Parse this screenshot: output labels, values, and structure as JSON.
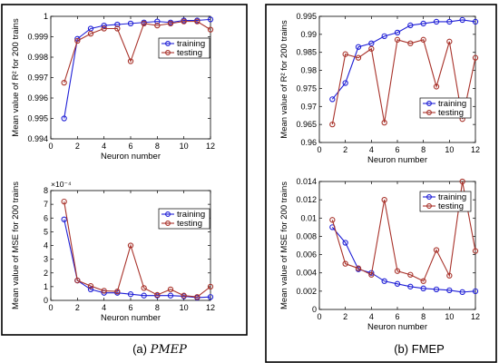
{
  "colors": {
    "training": "#1f1fd6",
    "testing": "#a8322a"
  },
  "captions": {
    "a_prefix": "(a) ",
    "a_method": "PMEP",
    "b_text": "(b) FMEP"
  },
  "chart_data": [
    {
      "id": "a_r2",
      "type": "line",
      "ylabel": "Mean value of R² for 200 trains",
      "xlabel": "Neuron number",
      "xlim": [
        0,
        12
      ],
      "ylim": [
        0.994,
        1.0
      ],
      "xticks": [
        0,
        2,
        4,
        6,
        8,
        10,
        12
      ],
      "yticks": [
        0.994,
        0.995,
        0.996,
        0.997,
        0.998,
        0.999,
        1.0
      ],
      "ytick_labels": [
        "0.994",
        "0.995",
        "0.996",
        "0.997",
        "0.998",
        "0.999",
        "1"
      ],
      "legend": "top-right",
      "x": [
        1,
        2,
        3,
        4,
        5,
        6,
        7,
        8,
        9,
        10,
        11,
        12
      ],
      "series": [
        {
          "name": "training",
          "values": [
            0.995,
            0.9989,
            0.9994,
            0.99955,
            0.9996,
            0.99965,
            0.9997,
            0.99975,
            0.9997,
            0.9998,
            0.9998,
            0.99985
          ]
        },
        {
          "name": "testing",
          "values": [
            0.99675,
            0.9988,
            0.99915,
            0.9994,
            0.9994,
            0.9978,
            0.99965,
            0.99955,
            0.99965,
            0.99975,
            0.99975,
            0.99935
          ]
        }
      ]
    },
    {
      "id": "a_mse",
      "type": "line",
      "ylabel": "Mean value of MSE for 200 trains",
      "xlabel": "Neuron number",
      "multiplier": "×10⁻⁴",
      "xlim": [
        0,
        12
      ],
      "ylim": [
        0,
        8
      ],
      "xticks": [
        0,
        2,
        4,
        6,
        8,
        10,
        12
      ],
      "yticks": [
        0,
        1,
        2,
        3,
        4,
        5,
        6,
        7,
        8
      ],
      "ytick_labels": [
        "0",
        "1",
        "2",
        "3",
        "4",
        "5",
        "6",
        "7",
        "8"
      ],
      "legend": "top-right",
      "x": [
        1,
        2,
        3,
        4,
        5,
        6,
        7,
        8,
        9,
        10,
        11,
        12
      ],
      "series": [
        {
          "name": "training",
          "values": [
            5.9,
            1.45,
            0.8,
            0.55,
            0.55,
            0.45,
            0.35,
            0.35,
            0.35,
            0.3,
            0.2,
            0.25
          ]
        },
        {
          "name": "testing",
          "values": [
            7.2,
            1.45,
            1.05,
            0.7,
            0.65,
            4.0,
            0.9,
            0.4,
            0.8,
            0.35,
            0.25,
            1.0
          ]
        }
      ]
    },
    {
      "id": "b_r2",
      "type": "line",
      "ylabel": "Mean value of R² for 200 trains",
      "xlabel": "Neuron number",
      "xlim": [
        0,
        12
      ],
      "ylim": [
        0.96,
        0.995
      ],
      "xticks": [
        0,
        2,
        4,
        6,
        8,
        10,
        12
      ],
      "yticks": [
        0.96,
        0.965,
        0.97,
        0.975,
        0.98,
        0.985,
        0.99,
        0.995
      ],
      "ytick_labels": [
        "0.96",
        "0.965",
        "0.97",
        "0.975",
        "0.98",
        "0.985",
        "0.99",
        "0.995"
      ],
      "legend": "bottom-right",
      "x": [
        1,
        2,
        3,
        4,
        5,
        6,
        7,
        8,
        9,
        10,
        11,
        12
      ],
      "series": [
        {
          "name": "training",
          "values": [
            0.972,
            0.9765,
            0.9865,
            0.9875,
            0.9895,
            0.9905,
            0.9925,
            0.993,
            0.9935,
            0.9935,
            0.994,
            0.9935
          ]
        },
        {
          "name": "testing",
          "values": [
            0.965,
            0.9845,
            0.9835,
            0.986,
            0.9655,
            0.9885,
            0.9875,
            0.9885,
            0.9755,
            0.988,
            0.9665,
            0.9835
          ]
        }
      ]
    },
    {
      "id": "b_mse",
      "type": "line",
      "ylabel": "Mean value of MSE for 200 trains",
      "xlabel": "Neuron number",
      "xlim": [
        0,
        12
      ],
      "ylim": [
        0,
        0.014
      ],
      "xticks": [
        0,
        2,
        4,
        6,
        8,
        10,
        12
      ],
      "yticks": [
        0,
        0.002,
        0.004,
        0.006,
        0.008,
        0.01,
        0.012,
        0.014
      ],
      "ytick_labels": [
        "0",
        "0.002",
        "0.004",
        "0.006",
        "0.008",
        "0.01",
        "0.012",
        "0.014"
      ],
      "legend": "top-right",
      "x": [
        1,
        2,
        3,
        4,
        5,
        6,
        7,
        8,
        9,
        10,
        11,
        12
      ],
      "series": [
        {
          "name": "training",
          "values": [
            0.009,
            0.0073,
            0.0044,
            0.004,
            0.0031,
            0.0028,
            0.0025,
            0.0023,
            0.0022,
            0.0021,
            0.0019,
            0.002
          ]
        },
        {
          "name": "testing",
          "values": [
            0.0098,
            0.005,
            0.0045,
            0.0038,
            0.012,
            0.0042,
            0.0038,
            0.0031,
            0.0065,
            0.0037,
            0.014,
            0.0064
          ]
        }
      ]
    }
  ]
}
